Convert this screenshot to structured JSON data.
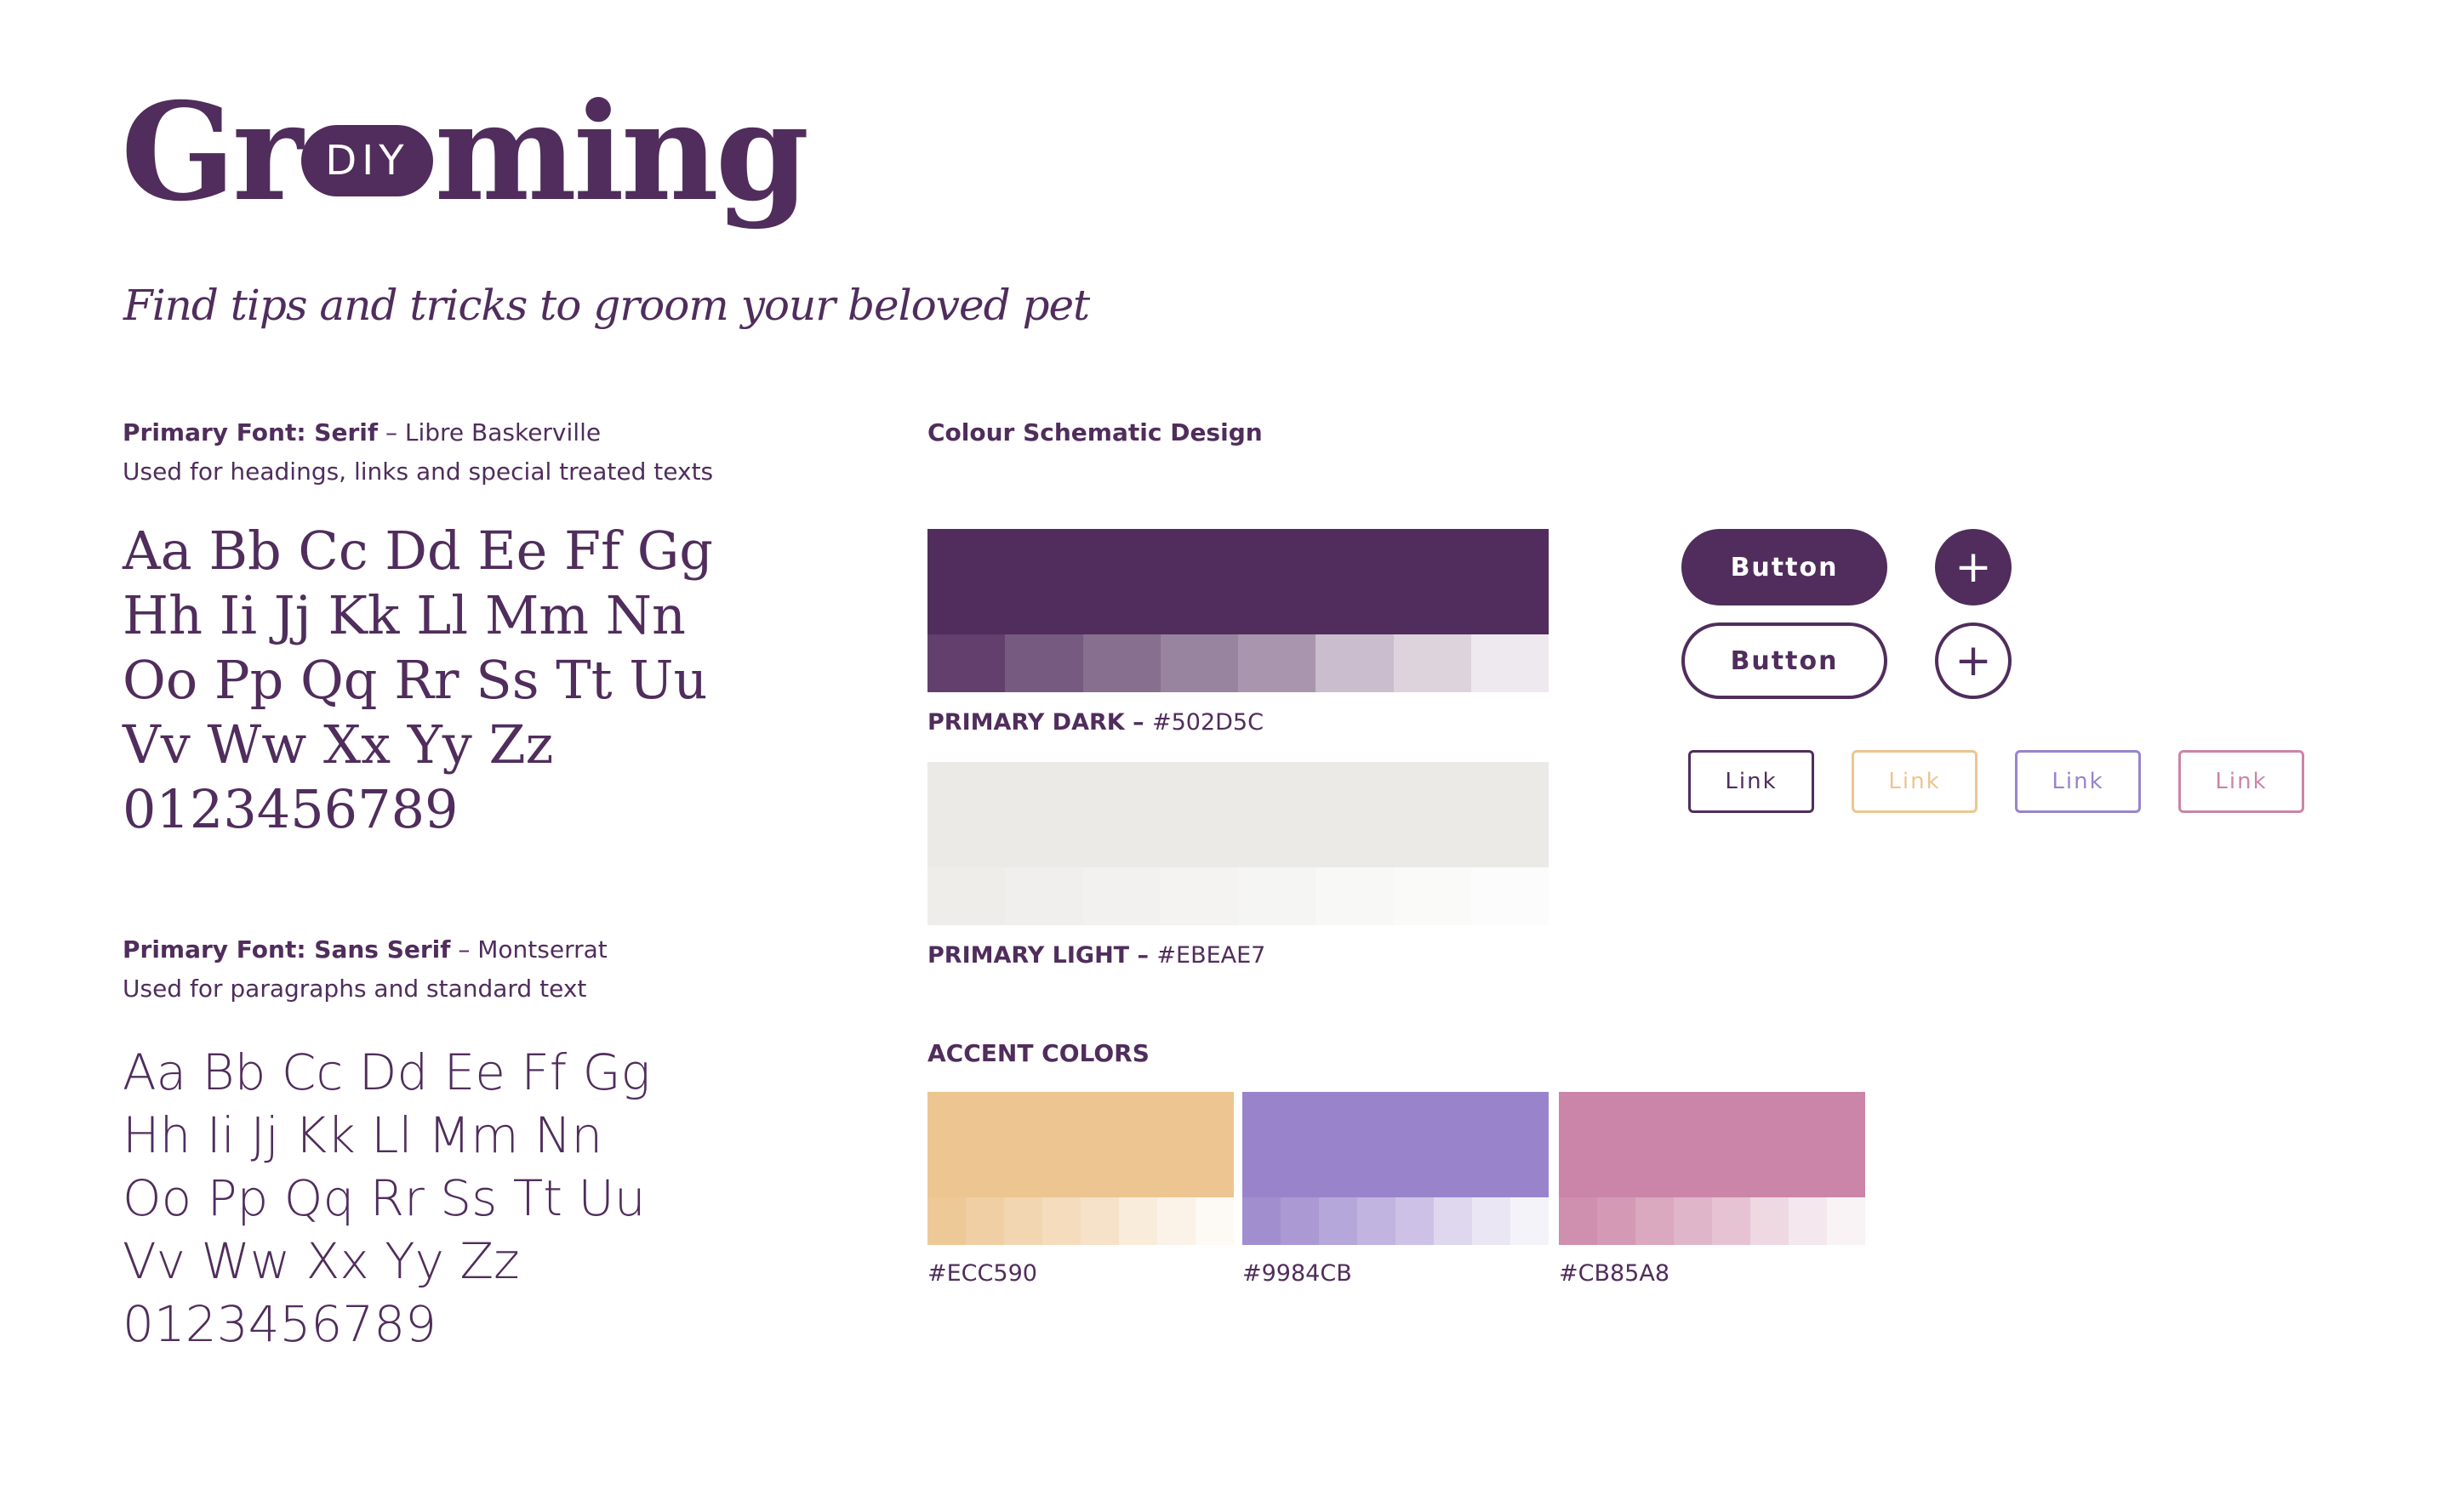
{
  "logo": {
    "part1": "Gr",
    "pill": "DIY",
    "part2": "ming"
  },
  "tagline": "Find tips and tricks to groom your beloved pet",
  "serif_font": {
    "title_bold": "Primary Font: Serif",
    "title_rest": " – Libre Baskerville",
    "description": "Used for headings, links and special treated texts",
    "specimen": [
      "Aa Bb Cc Dd Ee Ff Gg",
      "Hh Ii Jj Kk Ll Mm Nn",
      "Oo Pp Qq Rr Ss Tt Uu",
      "Vv Ww Xx Yy Zz",
      "0123456789"
    ]
  },
  "sans_font": {
    "title_bold": "Primary Font: Sans Serif",
    "title_rest": " – Montserrat",
    "description": "Used for paragraphs and standard text",
    "specimen": [
      "Aa Bb Cc Dd Ee Ff Gg",
      "Hh Ii Jj Kk Ll Mm Nn",
      "Oo Pp Qq Rr Ss Tt Uu",
      "Vv Ww Xx Yy Zz",
      "0123456789"
    ]
  },
  "colour_section": {
    "title": "Colour Schematic Design",
    "primary_dark": {
      "label_bold": "PRIMARY DARK – ",
      "hex": "#502D5C",
      "color": "#502D5C",
      "tints": [
        "#633F6E",
        "#775A80",
        "#876F8F",
        "#98849F",
        "#A996AE",
        "#CABDCD",
        "#DCD3DD",
        "#EEE8EF"
      ]
    },
    "primary_light": {
      "label_bold": "PRIMARY LIGHT – ",
      "hex": "#EBEAE7",
      "color": "#EBEAE7",
      "tints": [
        "#EEEDEA",
        "#F0EFED",
        "#F2F1EF",
        "#F4F3F2",
        "#F5F5F3",
        "#F8F8F7",
        "#FAFAF9",
        "#FCFCFC"
      ]
    },
    "accent_title": "ACCENT COLORS",
    "accents": [
      {
        "hex": "#ECC590",
        "color": "#ECC590",
        "tints": [
          "#EEC998",
          "#F0CFA4",
          "#F2D6B1",
          "#F4DCBD",
          "#F6E2C8",
          "#F9ECDB",
          "#FBF2E8",
          "#FDF9F4"
        ]
      },
      {
        "hex": "#9984CB",
        "color": "#9984CB",
        "tints": [
          "#A18ECF",
          "#AB99D4",
          "#B6A7DA",
          "#C1B4E0",
          "#CDC2E6",
          "#DED7EE",
          "#EAE6F4",
          "#F5F3FA"
        ]
      },
      {
        "hex": "#CB85A8",
        "color": "#CB85A8",
        "tints": [
          "#CF8FAE",
          "#D49AB5",
          "#DAA8BF",
          "#DFB5CA",
          "#E5C3D3",
          "#EED8E2",
          "#F4E7ED",
          "#FAF3F6"
        ]
      }
    ]
  },
  "buttons": {
    "solid_label": "Button",
    "outline_label": "Button",
    "plus_symbol": "+",
    "links": [
      {
        "label": "Link",
        "color": "#502D5C"
      },
      {
        "label": "Link",
        "color": "#ECC590"
      },
      {
        "label": "Link",
        "color": "#9984CB"
      },
      {
        "label": "Link",
        "color": "#CB85A8"
      }
    ]
  }
}
